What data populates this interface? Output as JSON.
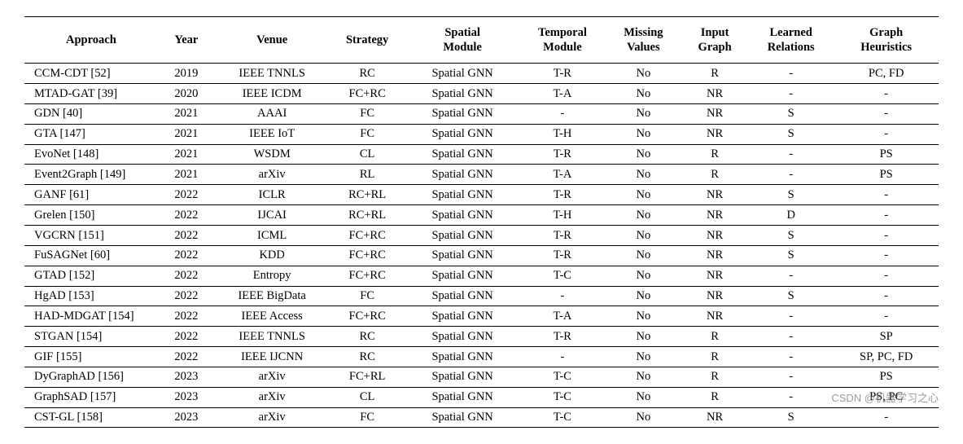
{
  "table": {
    "columns": [
      {
        "label": "Approach",
        "class": "approach",
        "width": "14%"
      },
      {
        "label": "Year",
        "class": "",
        "width": "6%"
      },
      {
        "label": "Venue",
        "class": "",
        "width": "12%"
      },
      {
        "label": "Strategy",
        "class": "",
        "width": "8%"
      },
      {
        "label": "Spatial\nModule",
        "class": "",
        "width": "12%"
      },
      {
        "label": "Temporal\nModule",
        "class": "",
        "width": "9%"
      },
      {
        "label": "Missing\nValues",
        "class": "",
        "width": "8%"
      },
      {
        "label": "Input\nGraph",
        "class": "",
        "width": "7%"
      },
      {
        "label": "Learned\nRelations",
        "class": "",
        "width": "9%"
      },
      {
        "label": "Graph\nHeuristics",
        "class": "",
        "width": "11%"
      }
    ],
    "rows": [
      [
        "CCM-CDT [52]",
        "2019",
        "IEEE TNNLS",
        "RC",
        "Spatial GNN",
        "T-R",
        "No",
        "R",
        "-",
        "PC, FD"
      ],
      [
        "MTAD-GAT [39]",
        "2020",
        "IEEE ICDM",
        "FC+RC",
        "Spatial GNN",
        "T-A",
        "No",
        "NR",
        "-",
        "-"
      ],
      [
        "GDN [40]",
        "2021",
        "AAAI",
        "FC",
        "Spatial GNN",
        "-",
        "No",
        "NR",
        "S",
        "-"
      ],
      [
        "GTA [147]",
        "2021",
        "IEEE IoT",
        "FC",
        "Spatial GNN",
        "T-H",
        "No",
        "NR",
        "S",
        "-"
      ],
      [
        "EvoNet [148]",
        "2021",
        "WSDM",
        "CL",
        "Spatial GNN",
        "T-R",
        "No",
        "R",
        "-",
        "PS"
      ],
      [
        "Event2Graph [149]",
        "2021",
        "arXiv",
        "RL",
        "Spatial GNN",
        "T-A",
        "No",
        "R",
        "-",
        "PS"
      ],
      [
        "GANF [61]",
        "2022",
        "ICLR",
        "RC+RL",
        "Spatial GNN",
        "T-R",
        "No",
        "NR",
        "S",
        "-"
      ],
      [
        "Grelen [150]",
        "2022",
        "IJCAI",
        "RC+RL",
        "Spatial GNN",
        "T-H",
        "No",
        "NR",
        "D",
        "-"
      ],
      [
        "VGCRN [151]",
        "2022",
        "ICML",
        "FC+RC",
        "Spatial GNN",
        "T-R",
        "No",
        "NR",
        "S",
        "-"
      ],
      [
        "FuSAGNet [60]",
        "2022",
        "KDD",
        "FC+RC",
        "Spatial GNN",
        "T-R",
        "No",
        "NR",
        "S",
        "-"
      ],
      [
        "GTAD [152]",
        "2022",
        "Entropy",
        "FC+RC",
        "Spatial GNN",
        "T-C",
        "No",
        "NR",
        "-",
        "-"
      ],
      [
        "HgAD [153]",
        "2022",
        "IEEE BigData",
        "FC",
        "Spatial GNN",
        "-",
        "No",
        "NR",
        "S",
        "-"
      ],
      [
        "HAD-MDGAT [154]",
        "2022",
        "IEEE Access",
        "FC+RC",
        "Spatial GNN",
        "T-A",
        "No",
        "NR",
        "-",
        "-"
      ],
      [
        "STGAN [154]",
        "2022",
        "IEEE TNNLS",
        "RC",
        "Spatial GNN",
        "T-R",
        "No",
        "R",
        "-",
        "SP"
      ],
      [
        "GIF [155]",
        "2022",
        "IEEE IJCNN",
        "RC",
        "Spatial GNN",
        "-",
        "No",
        "R",
        "-",
        "SP, PC, FD"
      ],
      [
        "DyGraphAD [156]",
        "2023",
        "arXiv",
        "FC+RL",
        "Spatial GNN",
        "T-C",
        "No",
        "R",
        "-",
        "PS"
      ],
      [
        "GraphSAD [157]",
        "2023",
        "arXiv",
        "CL",
        "Spatial GNN",
        "T-C",
        "No",
        "R",
        "-",
        "PS, PC"
      ],
      [
        "CST-GL [158]",
        "2023",
        "arXiv",
        "FC",
        "Spatial GNN",
        "T-C",
        "No",
        "NR",
        "S",
        "-"
      ]
    ]
  },
  "watermark": "CSDN @机器学习之心"
}
